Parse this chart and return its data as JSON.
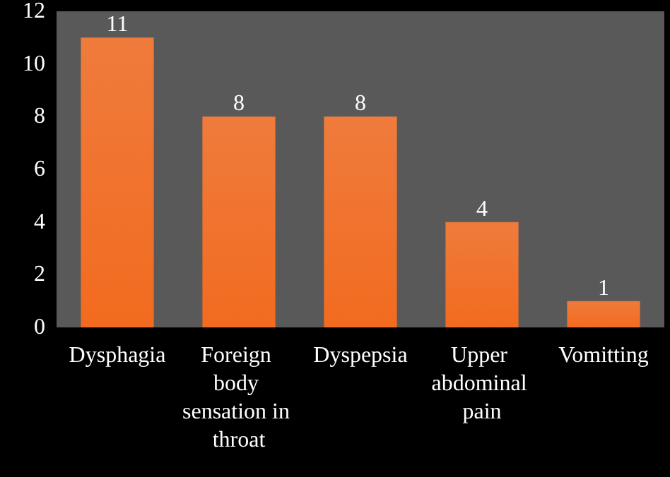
{
  "chart_data": {
    "type": "bar",
    "categories": [
      "Dysphagia",
      "Foreign body sensation in throat",
      "Dyspepsia",
      "Upper abdominal pain",
      "Vomitting"
    ],
    "values": [
      11,
      8,
      8,
      4,
      1
    ],
    "color": "#ef7b3c",
    "ylim": [
      0,
      12
    ],
    "yticks": [
      0,
      2,
      4,
      6,
      8,
      10,
      12
    ],
    "data_labels": true
  }
}
